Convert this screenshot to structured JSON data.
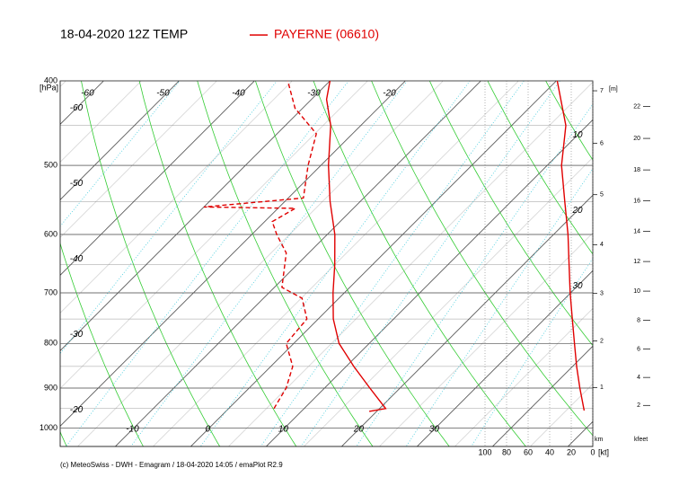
{
  "chart_data": {
    "type": "skewt",
    "title": "18-04-2020 12Z TEMP",
    "ylim": [
      400,
      1050
    ],
    "yticks": [
      400,
      500,
      600,
      700,
      800,
      900,
      1000
    ],
    "ylabel": "[hPa]",
    "series": [
      {
        "name": "PAYERNE (06610)",
        "color": "#e00000",
        "pressure": [
          957,
          950,
          900,
          850,
          800,
          750,
          700,
          650,
          600,
          550,
          500,
          450,
          420,
          400
        ],
        "values": [
          19,
          20.8,
          16,
          11,
          6,
          2,
          -1.5,
          -5,
          -9,
          -14,
          -19,
          -24,
          -28,
          -30
        ]
      },
      {
        "color": "#e00000",
        "dashed": true,
        "pressure": [
          950,
          900,
          850,
          800,
          750,
          710,
          690,
          630,
          600,
          580,
          560,
          558,
          545,
          500,
          460,
          430,
          400
        ],
        "values": [
          6,
          4.9,
          2.9,
          -1,
          -1.5,
          -4.9,
          -9,
          -13,
          -16.7,
          -19,
          -17.7,
          -30,
          -18,
          -21.7,
          -24.8,
          -31,
          -35.6
        ]
      }
    ],
    "wind": {
      "color": "#e00000",
      "pressure": [
        955,
        900,
        850,
        800,
        750,
        700,
        650,
        600,
        550,
        500,
        450,
        400
      ],
      "values": [
        8,
        12,
        15,
        17,
        19,
        21,
        22,
        23,
        26,
        29,
        25,
        33
      ]
    },
    "xlim": [
      0,
      100
    ],
    "xticks": [
      100,
      80,
      60,
      40,
      20,
      0
    ],
    "xlabel": "[kt]",
    "temp_ticks_top": [
      -60,
      -50,
      -40,
      -30,
      -20
    ],
    "temp_ticks_left": [
      -60,
      -50,
      -40,
      -30,
      -20
    ],
    "temp_ticks_bottom": [
      -10,
      0,
      10,
      20,
      30
    ],
    "temp_ticks_right": [
      10,
      20,
      30
    ],
    "km_ticks": [
      1,
      2,
      3,
      4,
      5,
      6,
      7
    ],
    "km_label": "km",
    "m_label": "[m]",
    "kfeet_ticks": [
      2,
      4,
      6,
      8,
      10,
      12,
      14,
      16,
      18,
      20,
      22
    ],
    "kfeet_label": "kfeet",
    "footer": "(c) MeteoSwiss - DWH - Emagram / 18-04-2020  14:05 / emaPlot R2.9"
  }
}
